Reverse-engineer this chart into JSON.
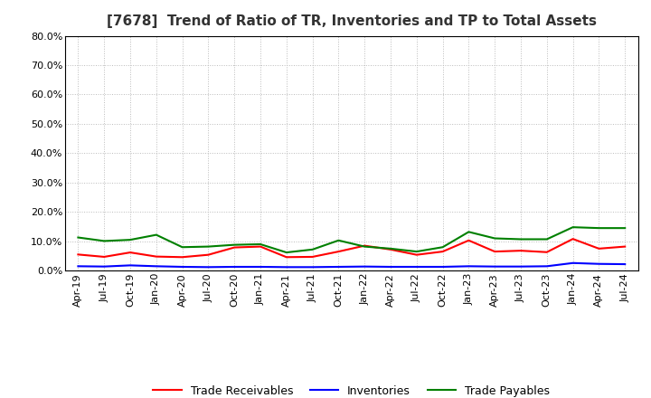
{
  "title": "[7678]  Trend of Ratio of TR, Inventories and TP to Total Assets",
  "background_color": "#ffffff",
  "plot_background_color": "#ffffff",
  "x_labels": [
    "Apr-19",
    "Jul-19",
    "Oct-19",
    "Jan-20",
    "Apr-20",
    "Jul-20",
    "Oct-20",
    "Jan-21",
    "Apr-21",
    "Jul-21",
    "Oct-21",
    "Jan-22",
    "Apr-22",
    "Jul-22",
    "Oct-22",
    "Jan-23",
    "Apr-23",
    "Jul-23",
    "Oct-23",
    "Jan-24",
    "Apr-24",
    "Jul-24"
  ],
  "trade_receivables": [
    0.055,
    0.047,
    0.062,
    0.048,
    0.046,
    0.054,
    0.079,
    0.082,
    0.046,
    0.047,
    0.065,
    0.085,
    0.072,
    0.054,
    0.065,
    0.103,
    0.065,
    0.068,
    0.063,
    0.108,
    0.075,
    0.082
  ],
  "inventories": [
    0.015,
    0.014,
    0.018,
    0.015,
    0.013,
    0.012,
    0.013,
    0.013,
    0.012,
    0.012,
    0.013,
    0.014,
    0.013,
    0.013,
    0.013,
    0.015,
    0.014,
    0.014,
    0.015,
    0.026,
    0.023,
    0.022
  ],
  "trade_payables": [
    0.113,
    0.101,
    0.105,
    0.122,
    0.08,
    0.082,
    0.088,
    0.09,
    0.062,
    0.072,
    0.103,
    0.082,
    0.075,
    0.065,
    0.08,
    0.132,
    0.11,
    0.107,
    0.107,
    0.148,
    0.145,
    0.145
  ],
  "ylim": [
    0.0,
    0.8
  ],
  "yticks": [
    0.0,
    0.1,
    0.2,
    0.3,
    0.4,
    0.5,
    0.6,
    0.7,
    0.8
  ],
  "ytick_labels": [
    "0.0%",
    "10.0%",
    "20.0%",
    "30.0%",
    "40.0%",
    "50.0%",
    "60.0%",
    "70.0%",
    "80.0%"
  ],
  "tr_color": "#ff0000",
  "inv_color": "#0000ff",
  "tp_color": "#008000",
  "tr_label": "Trade Receivables",
  "inv_label": "Inventories",
  "tp_label": "Trade Payables",
  "title_fontsize": 11,
  "legend_fontsize": 9,
  "tick_fontsize": 8,
  "grid_color": "#bbbbbb",
  "line_width": 1.5
}
